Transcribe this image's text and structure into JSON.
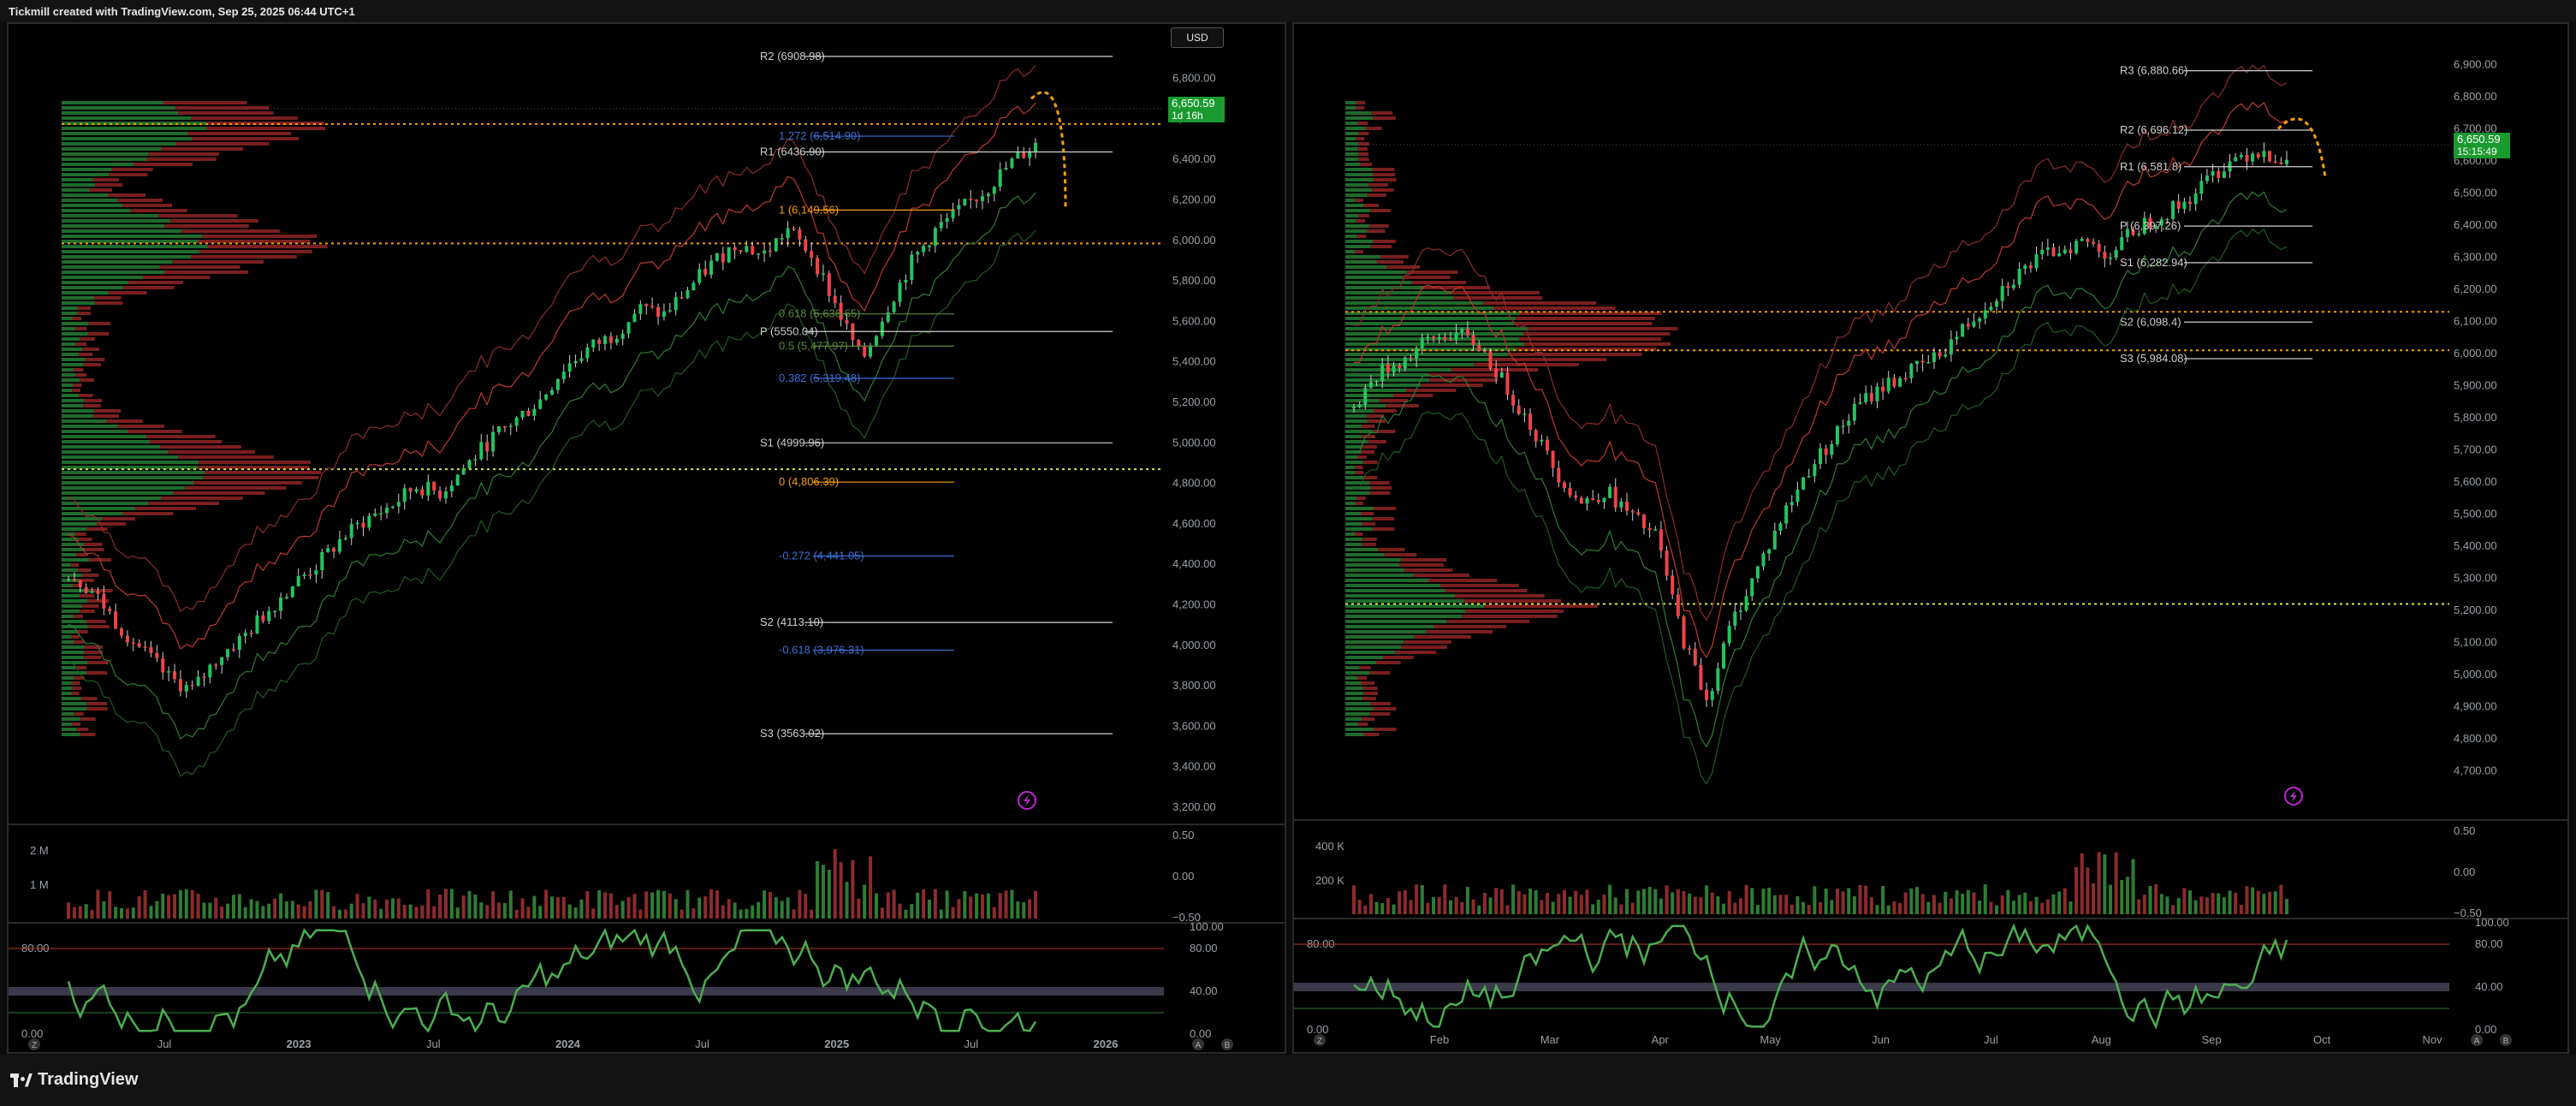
{
  "header": {
    "title": "Tickmill created with TradingView.com, Sep 25, 2025 06:44 UTC+1"
  },
  "footer": {
    "brand": "TradingView"
  },
  "currency_button": "USD",
  "colors": {
    "up": "#22c55e",
    "down": "#ef4444",
    "pivot_line": "#cfcfcf",
    "fib_blue": "#3b6fd8",
    "fib_orange": "#f59e0b",
    "poc_orange": "#f59e0b",
    "val_green": "#d9e34a",
    "rsi_line": "#4caf50"
  },
  "chart_data": [
    {
      "type": "candlestick",
      "title": "Weekly (left panel)",
      "ylim": [
        3200,
        6900
      ],
      "y_ticks": [
        "6,800.00",
        "6,600.00",
        "6,400.00",
        "6,200.00",
        "6,000.00",
        "5,800.00",
        "5,600.00",
        "5,400.00",
        "5,200.00",
        "5,000.00",
        "4,800.00",
        "4,600.00",
        "4,400.00",
        "4,200.00",
        "4,000.00",
        "3,800.00",
        "3,600.00",
        "3,400.00",
        "3,200.00"
      ],
      "x_ticks": [
        "Jul",
        "2023",
        "Jul",
        "2024",
        "Jul",
        "2025",
        "Jul",
        "2026"
      ],
      "last_price": {
        "value": "6,650.59",
        "countdown": "1d 16h"
      },
      "pivot_levels": [
        {
          "label": "R2 (6908.98)",
          "value": 6909
        },
        {
          "label": "R1 (6436.90)",
          "value": 6437
        },
        {
          "label": "P (5550.04)",
          "value": 5550
        },
        {
          "label": "S1 (4999.96)",
          "value": 5000
        },
        {
          "label": "S2 (4113.10)",
          "value": 4113
        },
        {
          "label": "S3 (3563.02)",
          "value": 3563
        }
      ],
      "fib_levels": [
        {
          "label": "1.272 (6,514.90)",
          "value": 6515,
          "color": "blue"
        },
        {
          "label": "1 (6,149.56)",
          "value": 6150,
          "color": "orange"
        },
        {
          "label": "0.618 (5,636.65)",
          "value": 5637,
          "color": "green"
        },
        {
          "label": "0.5 (5,477.97)",
          "value": 5478,
          "color": "green"
        },
        {
          "label": "0.382 (5,319.48)",
          "value": 5319,
          "color": "blue"
        },
        {
          "label": "0 (4,806.39)",
          "value": 4806,
          "color": "orange"
        },
        {
          "label": "-0.272 (4,441.05)",
          "value": 4441,
          "color": "blue"
        },
        {
          "label": "-0.618 (3,976.31)",
          "value": 3976,
          "color": "blue"
        }
      ],
      "poc_levels": [
        6575,
        5985,
        4870
      ],
      "volume_ticks": [
        "2 M",
        "1 M"
      ],
      "oscillator": {
        "left_ticks": [
          "80.00",
          "40.00",
          "0.00"
        ],
        "right_ticks": [
          "100.00",
          "80.00",
          "40.00",
          "0.00"
        ]
      },
      "momentum_ticks": [
        "0.50",
        "0.00",
        "−0.50"
      ],
      "rsi_right_label": "−100.00",
      "closes_norm": [
        0.3,
        0.27,
        0.22,
        0.18,
        0.14,
        0.12,
        0.17,
        0.2,
        0.24,
        0.28,
        0.31,
        0.35,
        0.38,
        0.4,
        0.43,
        0.42,
        0.46,
        0.5,
        0.53,
        0.56,
        0.61,
        0.64,
        0.66,
        0.7,
        0.69,
        0.73,
        0.77,
        0.8,
        0.78,
        0.82,
        0.78,
        0.7,
        0.62,
        0.7,
        0.77,
        0.82,
        0.85,
        0.88,
        0.92,
        0.95
      ]
    },
    {
      "type": "candlestick",
      "title": "Daily (right panel)",
      "ylim": [
        4600,
        6920
      ],
      "y_ticks": [
        "6,900.00",
        "6,800.00",
        "6,700.00",
        "6,600.00",
        "6,500.00",
        "6,400.00",
        "6,300.00",
        "6,200.00",
        "6,100.00",
        "6,000.00",
        "5,900.00",
        "5,800.00",
        "5,700.00",
        "5,600.00",
        "5,500.00",
        "5,400.00",
        "5,300.00",
        "5,200.00",
        "5,100.00",
        "5,000.00",
        "4,900.00",
        "4,800.00",
        "4,700.00"
      ],
      "x_ticks": [
        "Feb",
        "Mar",
        "Apr",
        "May",
        "Jun",
        "Jul",
        "Aug",
        "Sep",
        "Oct",
        "Nov"
      ],
      "last_price": {
        "value": "6,650.59",
        "countdown": "15:15:49"
      },
      "pivot_levels": [
        {
          "label": "R3 (6,880.66)",
          "value": 6881
        },
        {
          "label": "R2 (6,696.12)",
          "value": 6696
        },
        {
          "label": "R1 (6,581.8)",
          "value": 6582
        },
        {
          "label": "P (6,397.26)",
          "value": 6397
        },
        {
          "label": "S1 (6,282.94)",
          "value": 6283
        },
        {
          "label": "S2 (6,098.4)",
          "value": 6098
        },
        {
          "label": "S3 (5,984.08)",
          "value": 5984
        }
      ],
      "poc_levels": [
        6130,
        6010,
        5220
      ],
      "volume_ticks": [
        "400 K",
        "200 K"
      ],
      "oscillator": {
        "left_ticks": [
          "80.00",
          "40.00",
          "0.00"
        ],
        "right_ticks": [
          "100.00",
          "80.00",
          "40.00",
          "0.00"
        ]
      },
      "momentum_ticks": [
        "0.50",
        "0.00",
        "−0.50"
      ],
      "closes_norm": [
        0.55,
        0.6,
        0.62,
        0.65,
        0.66,
        0.64,
        0.58,
        0.52,
        0.45,
        0.4,
        0.42,
        0.38,
        0.35,
        0.2,
        0.1,
        0.22,
        0.3,
        0.38,
        0.45,
        0.5,
        0.55,
        0.58,
        0.6,
        0.62,
        0.66,
        0.7,
        0.74,
        0.77,
        0.79,
        0.8,
        0.78,
        0.82,
        0.84,
        0.86,
        0.9,
        0.93,
        0.94,
        0.92
      ]
    }
  ],
  "icons": [
    "lightning-icon",
    "settings-gear-icon",
    "bolt-icon"
  ]
}
